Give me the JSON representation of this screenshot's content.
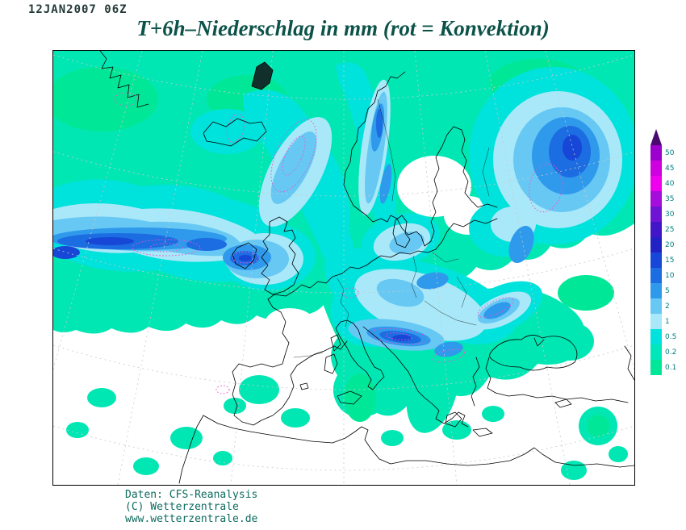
{
  "header": {
    "datetime": "12JAN2007 06Z",
    "title": "T+6h–Niederschlag in mm (rot = Konvektion)"
  },
  "legend": {
    "units": "mm",
    "arrow_color": "#4b0a70",
    "label_color": "#008080",
    "levels": [
      {
        "label": "50",
        "color": "#9b00cc"
      },
      {
        "label": "45",
        "color": "#cf00e0"
      },
      {
        "label": "40",
        "color": "#ee00ee"
      },
      {
        "label": "35",
        "color": "#a50ddb"
      },
      {
        "label": "30",
        "color": "#6f14d2"
      },
      {
        "label": "25",
        "color": "#4116c8"
      },
      {
        "label": "20",
        "color": "#2222c4"
      },
      {
        "label": "15",
        "color": "#1747d6"
      },
      {
        "label": "10",
        "color": "#1c6ce2"
      },
      {
        "label": "5",
        "color": "#2f99ec"
      },
      {
        "label": "2",
        "color": "#67c8f4"
      },
      {
        "label": "1",
        "color": "#a9e8f8"
      },
      {
        "label": "0.5",
        "color": "#00e2de"
      },
      {
        "label": "0.2",
        "color": "#00e7bc"
      },
      {
        "label": "0.1",
        "color": "#00e897"
      }
    ]
  },
  "footer": {
    "lines": [
      "Daten: CFS-Reanalysis",
      "(C) Wetterzentrale",
      "www.wetterzentrale.de"
    ]
  }
}
